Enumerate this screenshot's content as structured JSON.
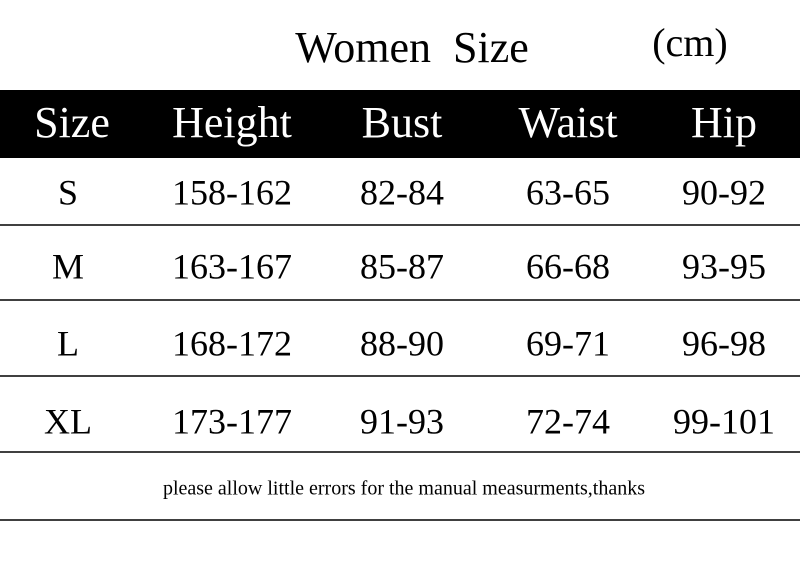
{
  "header": {
    "title": "Women  Size",
    "unit": "(cm)"
  },
  "table": {
    "columns": [
      "Size",
      "Height",
      "Bust",
      "Waist",
      "Hip"
    ],
    "rows": [
      [
        "S",
        "158-162",
        "82-84",
        "63-65",
        "90-92"
      ],
      [
        "M",
        "163-167",
        "85-87",
        "66-68",
        "93-95"
      ],
      [
        "L",
        "168-172",
        "88-90",
        "69-71",
        "96-98"
      ],
      [
        "XL",
        "173-177",
        "91-93",
        "72-74",
        "99-101"
      ]
    ]
  },
  "note": "please allow little errors for the manual measurments,thanks"
}
